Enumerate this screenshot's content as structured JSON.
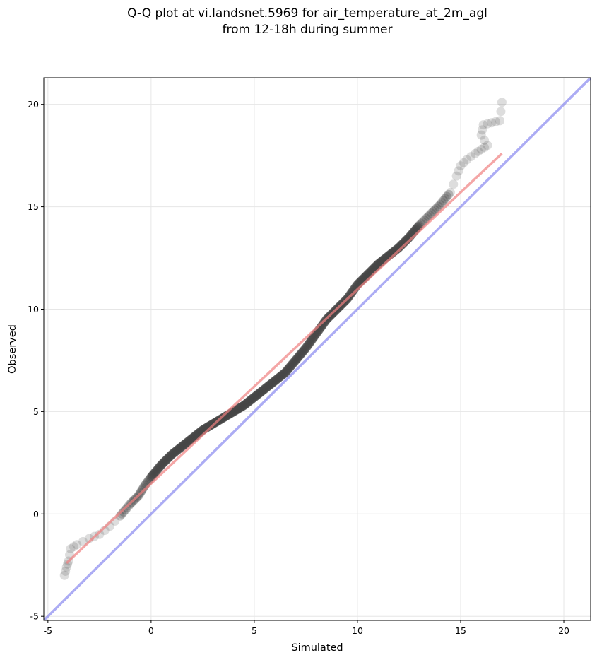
{
  "title_line1": "Q-Q plot at vi.landsnet.5969 for air_temperature_at_2m_agl",
  "title_line2": "from 12-18h during summer",
  "chart_data": {
    "type": "scatter",
    "title": "Q-Q plot at vi.landsnet.5969 for air_temperature_at_2m_agl\nfrom 12-18h during summer",
    "xlabel": "Simulated",
    "ylabel": "Observed",
    "xlim": [
      -5.2,
      21.3
    ],
    "ylim": [
      -5.2,
      21.3
    ],
    "grid": true,
    "xticks": [
      -5,
      0,
      5,
      10,
      15,
      20
    ],
    "yticks": [
      -5,
      0,
      5,
      10,
      15,
      20
    ],
    "quantile_curve": [
      [
        -4.2,
        -3.0
      ],
      [
        -4.1,
        -2.6
      ],
      [
        -4.0,
        -2.3
      ],
      [
        -3.9,
        -1.7
      ],
      [
        -3.6,
        -1.5
      ],
      [
        -3.0,
        -1.2
      ],
      [
        -2.5,
        -1.0
      ],
      [
        -2.0,
        -0.6
      ],
      [
        -1.5,
        -0.1
      ],
      [
        -1.0,
        0.5
      ],
      [
        -0.6,
        0.9
      ],
      [
        -0.3,
        1.4
      ],
      [
        0.0,
        1.8
      ],
      [
        0.5,
        2.4
      ],
      [
        1.0,
        2.9
      ],
      [
        1.5,
        3.3
      ],
      [
        2.0,
        3.7
      ],
      [
        2.5,
        4.1
      ],
      [
        3.0,
        4.4
      ],
      [
        3.5,
        4.7
      ],
      [
        4.0,
        5.0
      ],
      [
        4.5,
        5.3
      ],
      [
        5.0,
        5.7
      ],
      [
        5.5,
        6.1
      ],
      [
        6.0,
        6.5
      ],
      [
        6.5,
        6.9
      ],
      [
        7.0,
        7.5
      ],
      [
        7.5,
        8.1
      ],
      [
        8.0,
        8.8
      ],
      [
        8.5,
        9.5
      ],
      [
        9.0,
        10.0
      ],
      [
        9.5,
        10.5
      ],
      [
        10.0,
        11.2
      ],
      [
        10.5,
        11.7
      ],
      [
        11.0,
        12.2
      ],
      [
        11.5,
        12.6
      ],
      [
        12.0,
        13.0
      ],
      [
        12.5,
        13.5
      ],
      [
        13.0,
        14.1
      ],
      [
        13.5,
        14.6
      ],
      [
        14.0,
        15.1
      ],
      [
        14.5,
        15.7
      ],
      [
        14.8,
        16.5
      ],
      [
        15.0,
        17.0
      ],
      [
        15.3,
        17.3
      ],
      [
        15.7,
        17.6
      ],
      [
        16.0,
        17.8
      ],
      [
        16.3,
        18.0
      ],
      [
        16.0,
        18.5
      ],
      [
        16.1,
        19.0
      ],
      [
        16.5,
        19.1
      ],
      [
        16.9,
        19.2
      ],
      [
        17.0,
        20.1
      ]
    ],
    "series": [
      {
        "name": "",
        "kind": "quantiles",
        "color": "#444444"
      },
      {
        "name": "",
        "kind": "fit",
        "color": "#f08080",
        "points": [
          [
            -4.1,
            -2.4
          ],
          [
            17.0,
            17.6
          ]
        ]
      },
      {
        "name": "",
        "kind": "identity",
        "color": "#8080ee",
        "points": [
          [
            -5.2,
            -5.2
          ],
          [
            21.3,
            21.3
          ]
        ]
      }
    ]
  }
}
